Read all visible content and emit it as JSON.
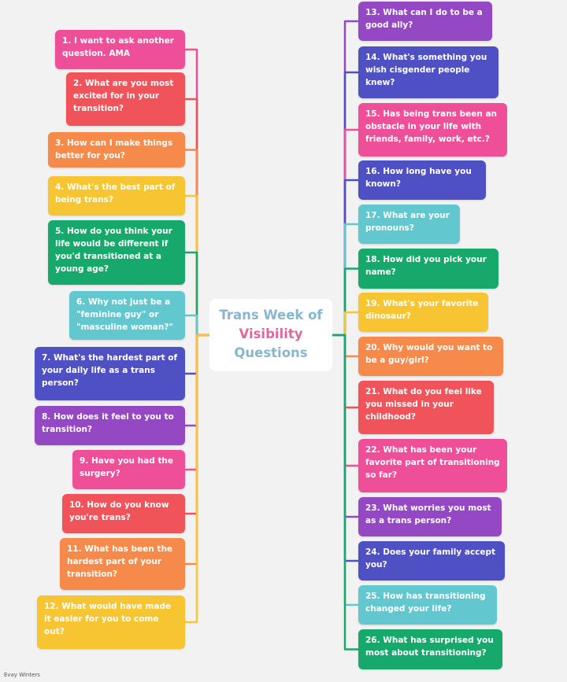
{
  "center": {
    "line1": "Trans Week of",
    "line2": "Visibility",
    "line3": "Questions"
  },
  "credit": "Evay Winters",
  "colors": {
    "pink": "#ef4f98",
    "red": "#f1535a",
    "orange": "#f58a4b",
    "yellow": "#f7c532",
    "green": "#17a86b",
    "teal": "#63c7cf",
    "indigo": "#4f50c4",
    "purple": "#9548c3"
  },
  "left_questions": [
    {
      "text": "1. I want to ask another question. AMA",
      "color": "pink"
    },
    {
      "text": "2. What are you most excited for in your transition?",
      "color": "red"
    },
    {
      "text": "3. How can I make things better for you?",
      "color": "orange"
    },
    {
      "text": "4. What's the best part of being trans?",
      "color": "yellow"
    },
    {
      "text": "5. How do you think your life would be different if you'd transitioned at a young age?",
      "color": "green"
    },
    {
      "text": "6. Why not just be a \"feminine guy\" or \"masculine woman?\"",
      "color": "teal"
    },
    {
      "text": "7. What's the hardest part of your daily life as a trans person?",
      "color": "indigo"
    },
    {
      "text": "8. How does it feel to you to transition?",
      "color": "purple"
    },
    {
      "text": "9. Have you had the surgery?",
      "color": "pink"
    },
    {
      "text": "10. How do you know you're trans?",
      "color": "red"
    },
    {
      "text": "11. What has been the hardest part of your transition?",
      "color": "orange"
    },
    {
      "text": "12. What would have made it easier for you to come out?",
      "color": "yellow"
    }
  ],
  "right_questions": [
    {
      "text": "13. What can I do to be a good ally?",
      "color": "purple"
    },
    {
      "text": "14. What's something you wish cisgender people knew?",
      "color": "indigo"
    },
    {
      "text": "15. Has being trans been an obstacle in your life with friends, family, work, etc.?",
      "color": "pink"
    },
    {
      "text": "16. How long have you known?",
      "color": "indigo"
    },
    {
      "text": "17. What are your pronouns?",
      "color": "teal"
    },
    {
      "text": "18. How did you pick your name?",
      "color": "green"
    },
    {
      "text": "19. What's your favorite dinosaur?",
      "color": "yellow"
    },
    {
      "text": "20. Why would you want to be a guy/girl?",
      "color": "orange"
    },
    {
      "text": "21. What do you feel like you missed in your childhood?",
      "color": "red"
    },
    {
      "text": "22. What has been your favorite part of transitioning so far?",
      "color": "pink"
    },
    {
      "text": "23. What worries you most as a trans person?",
      "color": "purple"
    },
    {
      "text": "24. Does your family accept you?",
      "color": "indigo"
    },
    {
      "text": "25. How has transitioning changed your life?",
      "color": "teal"
    },
    {
      "text": "26. What has surprised you most about transitioning?",
      "color": "green"
    }
  ]
}
